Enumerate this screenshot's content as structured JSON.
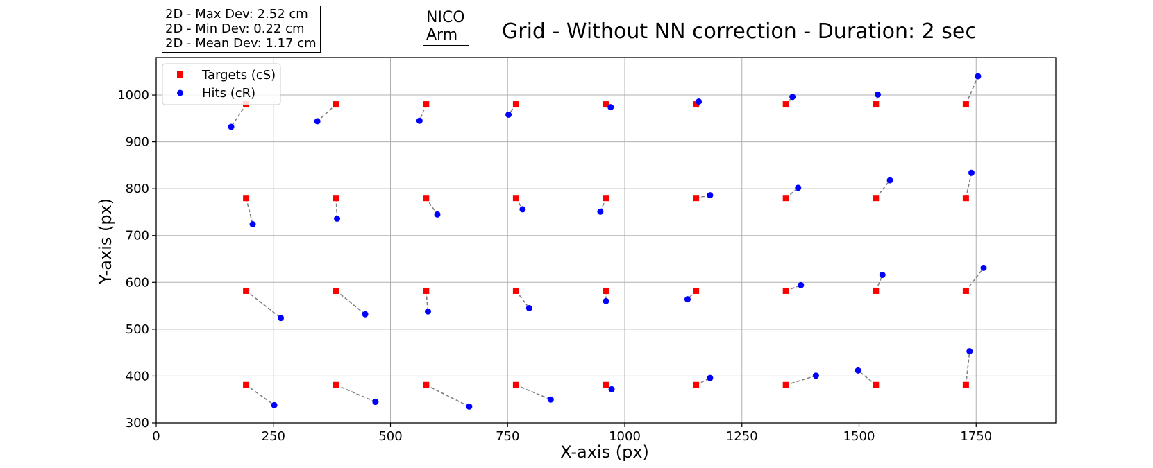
{
  "stats": {
    "max_dev": "2D - Max Dev: 2.52 cm",
    "min_dev": "2D - Min Dev: 0.22 cm",
    "mean_dev": "2D - Mean Dev: 1.17 cm"
  },
  "robot": {
    "line1": "NICO",
    "line2": "Arm"
  },
  "chart_data": {
    "type": "scatter",
    "title": "Grid - Without NN correction - Duration: 2 sec",
    "xlabel": "X-axis (px)",
    "ylabel": "Y-axis (px)",
    "xlim": [
      0,
      1920
    ],
    "ylim": [
      300,
      1080
    ],
    "xticks": [
      0,
      250,
      500,
      750,
      1000,
      1250,
      1500,
      1750
    ],
    "yticks": [
      300,
      400,
      500,
      600,
      700,
      800,
      900,
      1000
    ],
    "grid": true,
    "legend_position": "top-left",
    "colors": {
      "targets": "#ff0000",
      "hits": "#0000ff",
      "connector": "#808080"
    },
    "series": [
      {
        "name": "Targets (cS)",
        "marker": "square",
        "color": "#ff0000",
        "points": [
          [
            192,
            980
          ],
          [
            384,
            980
          ],
          [
            576,
            980
          ],
          [
            768,
            980
          ],
          [
            960,
            980
          ],
          [
            1152,
            980
          ],
          [
            1344,
            980
          ],
          [
            1536,
            980
          ],
          [
            1728,
            980
          ],
          [
            192,
            780
          ],
          [
            384,
            780
          ],
          [
            576,
            780
          ],
          [
            768,
            780
          ],
          [
            960,
            780
          ],
          [
            1152,
            780
          ],
          [
            1344,
            780
          ],
          [
            1536,
            780
          ],
          [
            1728,
            780
          ],
          [
            192,
            582
          ],
          [
            384,
            582
          ],
          [
            576,
            582
          ],
          [
            768,
            582
          ],
          [
            960,
            582
          ],
          [
            1152,
            582
          ],
          [
            1344,
            582
          ],
          [
            1536,
            582
          ],
          [
            1728,
            582
          ],
          [
            192,
            381
          ],
          [
            384,
            381
          ],
          [
            576,
            381
          ],
          [
            768,
            381
          ],
          [
            960,
            381
          ],
          [
            1152,
            381
          ],
          [
            1344,
            381
          ],
          [
            1536,
            381
          ],
          [
            1728,
            381
          ]
        ]
      },
      {
        "name": "Hits (cR)",
        "marker": "circle",
        "color": "#0000ff",
        "points": [
          [
            160,
            932
          ],
          [
            344,
            944
          ],
          [
            562,
            945
          ],
          [
            752,
            958
          ],
          [
            970,
            974
          ],
          [
            1158,
            986
          ],
          [
            1358,
            996
          ],
          [
            1540,
            1001
          ],
          [
            1754,
            1040
          ],
          [
            206,
            724
          ],
          [
            386,
            736
          ],
          [
            600,
            745
          ],
          [
            782,
            756
          ],
          [
            948,
            751
          ],
          [
            1182,
            786
          ],
          [
            1370,
            802
          ],
          [
            1566,
            818
          ],
          [
            1740,
            834
          ],
          [
            266,
            524
          ],
          [
            446,
            532
          ],
          [
            580,
            538
          ],
          [
            796,
            545
          ],
          [
            960,
            560
          ],
          [
            1134,
            564
          ],
          [
            1376,
            594
          ],
          [
            1550,
            616
          ],
          [
            1766,
            631
          ],
          [
            252,
            338
          ],
          [
            468,
            345
          ],
          [
            668,
            335
          ],
          [
            842,
            350
          ],
          [
            972,
            372
          ],
          [
            1182,
            396
          ],
          [
            1408,
            401
          ],
          [
            1498,
            412
          ],
          [
            1736,
            453
          ]
        ]
      }
    ]
  }
}
